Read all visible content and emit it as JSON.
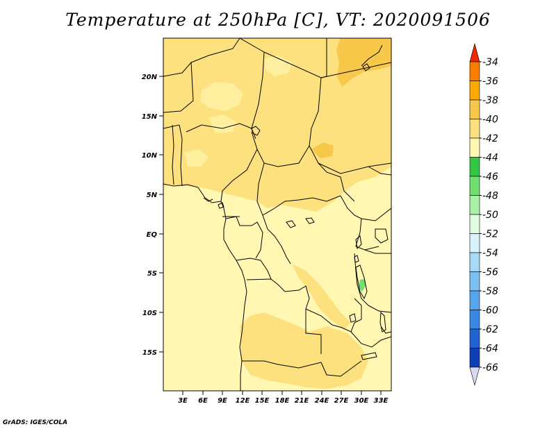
{
  "title": "Temperature at 250hPa [C], VT: 2020091506",
  "footer": "GrADS: IGES/COLA",
  "map": {
    "projection": "lat-lon",
    "lon_range": [
      0,
      34.5
    ],
    "lat_range": [
      -19.5,
      24.5
    ],
    "lat_ticks": [
      "20N",
      "15N",
      "10N",
      "5N",
      "EQ",
      "5S",
      "10S",
      "15S"
    ],
    "lon_ticks": [
      "3E",
      "6E",
      "9E",
      "12E",
      "15E",
      "18E",
      "21E",
      "24E",
      "27E",
      "30E",
      "33E"
    ],
    "field": "temperature",
    "units": "C",
    "level": "250hPa",
    "valid_time": "2020091506"
  },
  "colorbar": {
    "labels": [
      "-34",
      "-36",
      "-38",
      "-40",
      "-42",
      "-44",
      "-46",
      "-48",
      "-50",
      "-52",
      "-54",
      "-56",
      "-58",
      "-60",
      "-62",
      "-64",
      "-66"
    ],
    "colors": [
      "#f04b00",
      "#fa7d00",
      "#fdaa00",
      "#f8c84a",
      "#fde17e",
      "#fff7b2",
      "#35c645",
      "#6fe070",
      "#a8f1a6",
      "#e2fbe0",
      "#d9f1fb",
      "#a8d9f6",
      "#7cc0f3",
      "#56a5ef",
      "#3a88e5",
      "#2063d3",
      "#0f40b5",
      "#0b1b80"
    ],
    "top_arrow_color": "#f02800",
    "bottom_arrow_color": "#d8d8ef"
  }
}
